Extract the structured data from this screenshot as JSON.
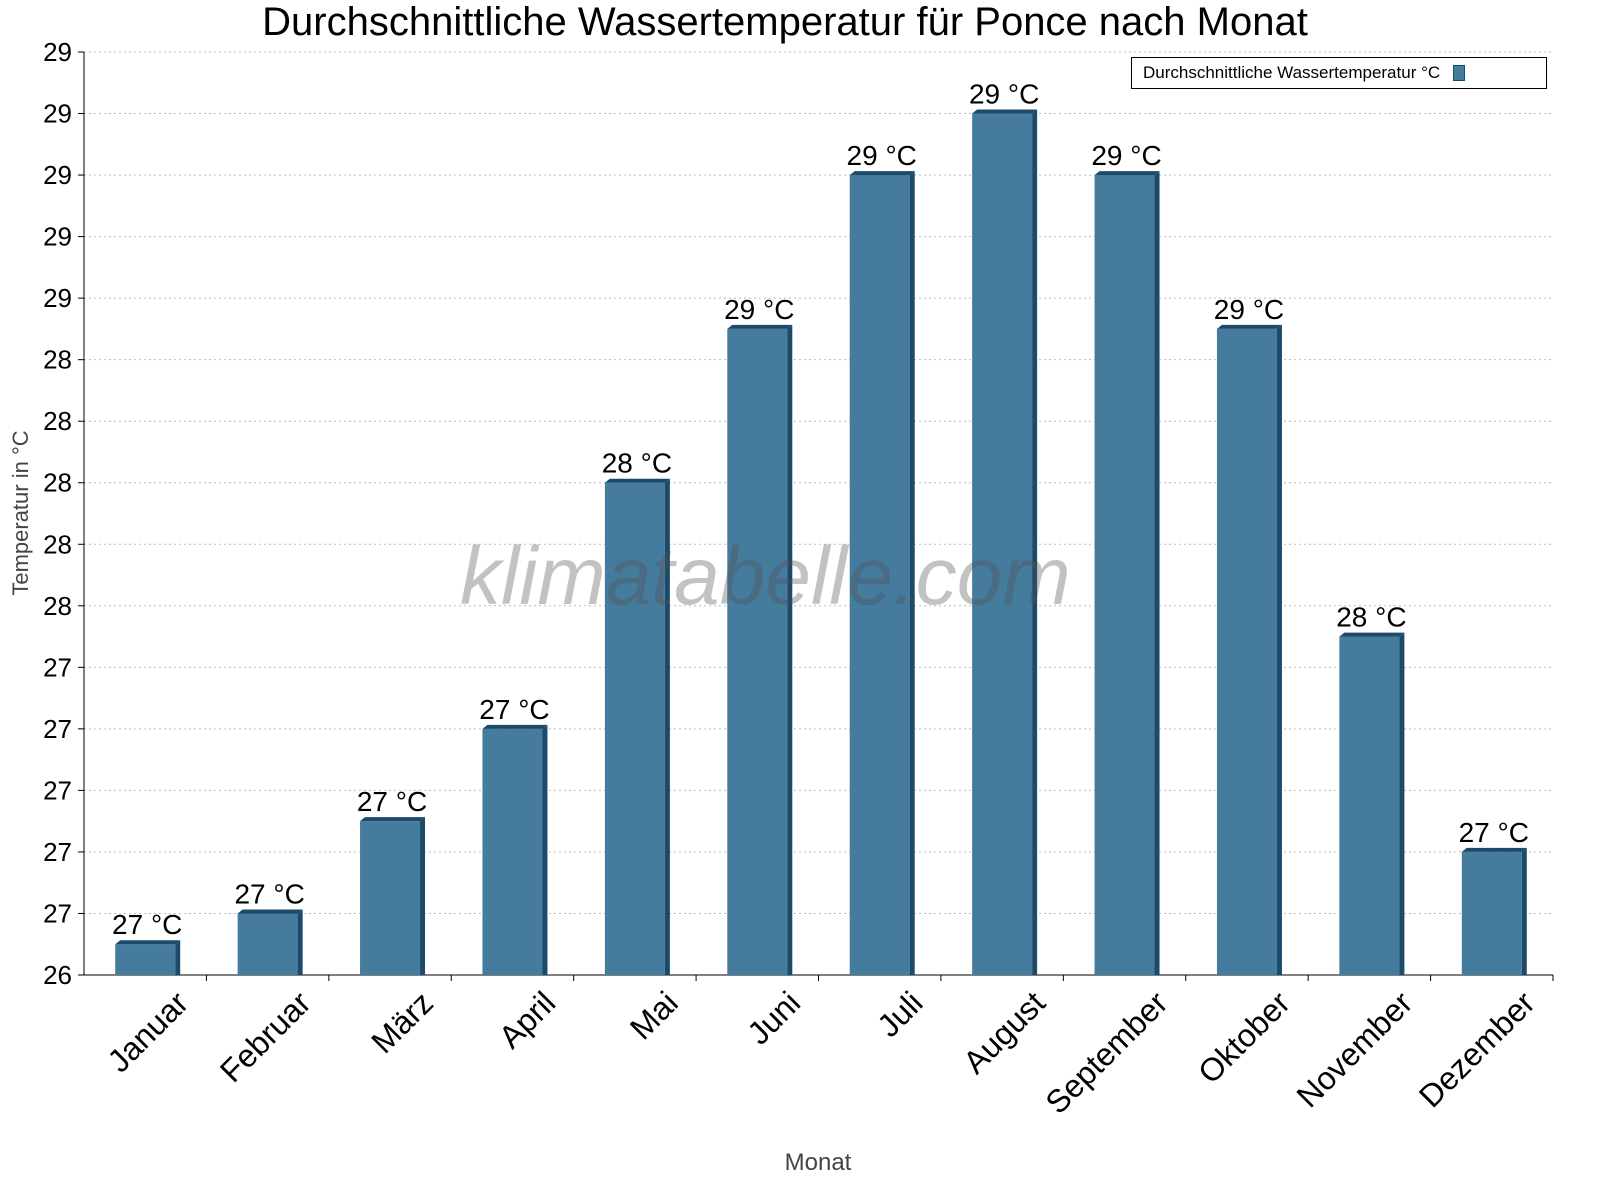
{
  "chart_data": {
    "type": "bar",
    "title": "Durchschnittliche Wassertemperatur für Ponce nach Monat",
    "xlabel": "Monat",
    "ylabel": "Temperatur in °C",
    "ylim": [
      26.4,
      29.4
    ],
    "ytick_values": [
      26.4,
      26.6,
      26.8,
      27.0,
      27.2,
      27.4,
      27.6,
      27.8,
      28.0,
      28.2,
      28.4,
      28.6,
      28.8,
      29.0,
      29.2,
      29.4
    ],
    "ytick_labels": [
      "26",
      "27",
      "27",
      "27",
      "27",
      "27",
      "28",
      "28",
      "28",
      "28",
      "28",
      "29",
      "29",
      "29",
      "29",
      "29"
    ],
    "grid": true,
    "legend_position": "top-right",
    "categories": [
      "Januar",
      "Februar",
      "März",
      "April",
      "Mai",
      "Juni",
      "Juli",
      "August",
      "September",
      "Oktober",
      "November",
      "Dezember"
    ],
    "series": [
      {
        "name": "Durchschnittliche Wassertemperatur °C",
        "color": "#457b9d",
        "values": [
          26.5,
          26.6,
          26.9,
          27.2,
          28.0,
          28.5,
          29.0,
          29.2,
          29.0,
          28.5,
          27.5,
          26.8
        ],
        "data_labels": [
          "27 °C",
          "27 °C",
          "27 °C",
          "27 °C",
          "28 °C",
          "29 °C",
          "29 °C",
          "29 °C",
          "29 °C",
          "29 °C",
          "28 °C",
          "27 °C"
        ]
      }
    ]
  },
  "watermark": "klimatabelle.com"
}
